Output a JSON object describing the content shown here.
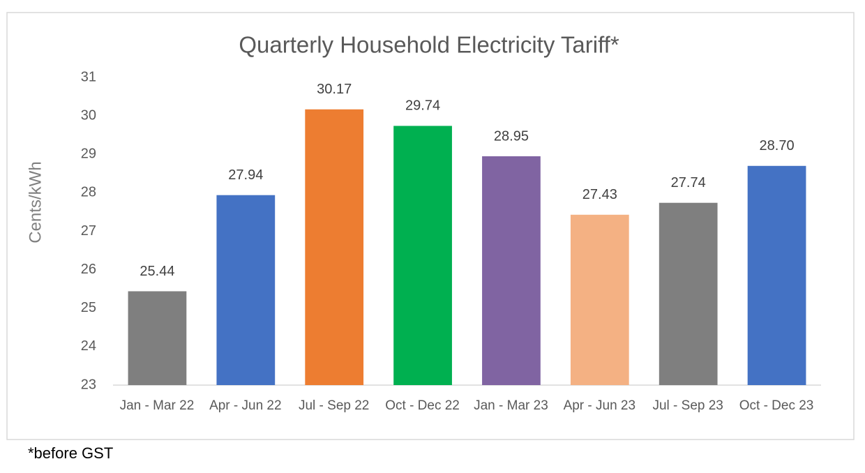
{
  "chart_data": {
    "type": "bar",
    "title": "Quarterly Household Electricity Tariff*",
    "y_label": "Cents/kWh",
    "categories": [
      "Jan - Mar 22",
      "Apr - Jun 22",
      "Jul - Sep 22",
      "Oct - Dec 22",
      "Jan - Mar 23",
      "Apr - Jun 23",
      "Jul - Sep 23",
      "Oct - Dec 23"
    ],
    "values": [
      25.44,
      27.94,
      30.17,
      29.74,
      28.95,
      27.43,
      27.74,
      28.7
    ],
    "value_labels": [
      "25.44",
      "27.94",
      "30.17",
      "29.74",
      "28.95",
      "27.43",
      "27.74",
      "28.70"
    ],
    "colors": [
      "#7f7f7f",
      "#4472c4",
      "#ed7d31",
      "#00b050",
      "#8064a2",
      "#f4b183",
      "#7f7f7f",
      "#4472c4"
    ],
    "ylim": [
      23,
      31
    ],
    "yticks": [
      23,
      24,
      25,
      26,
      27,
      28,
      29,
      30,
      31
    ],
    "grid": false
  },
  "footnote": "*before GST"
}
